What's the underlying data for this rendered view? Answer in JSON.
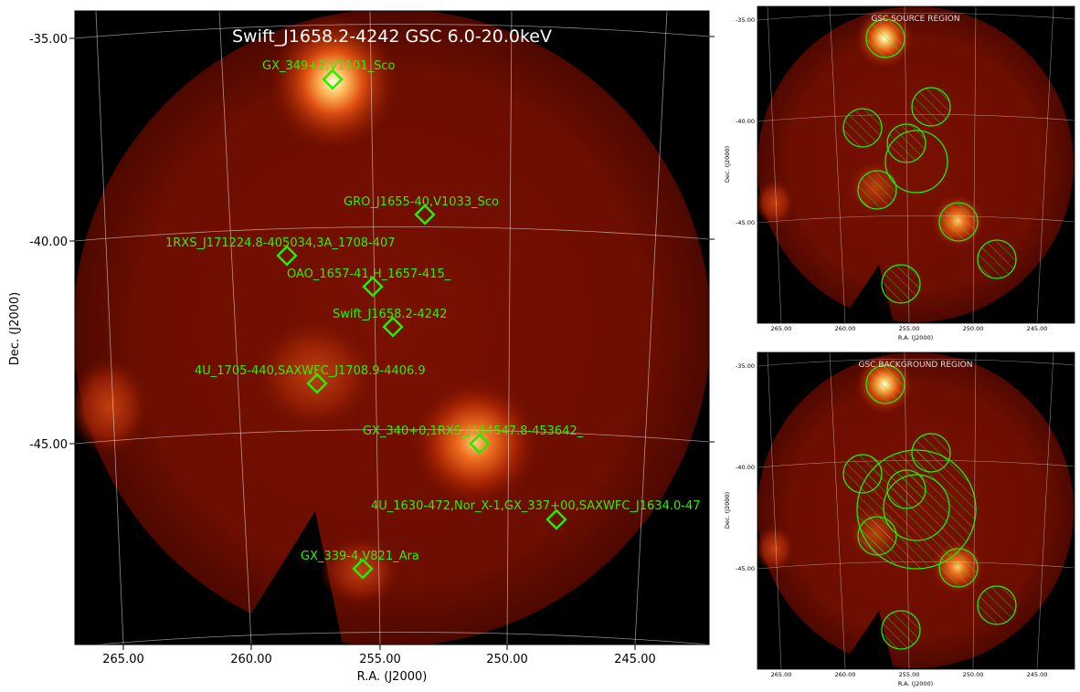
{
  "main_panel": {
    "title": "Swift_J1658.2-4242 GSC 6.0-20.0keV",
    "xlabel": "R.A. (J2000)",
    "ylabel": "Dec. (J2000)",
    "dec_ticks": [
      "-35.00",
      "-40.00",
      "-45.00"
    ],
    "ra_ticks": [
      "265.00",
      "260.00",
      "255.00",
      "250.00",
      "245.00"
    ],
    "sources": [
      {
        "label": "GX_349+2,V1101_Sco"
      },
      {
        "label": "GRO_J1655-40,V1033_Sco"
      },
      {
        "label": "1RXS_J171224.8-405034,3A_1708-407"
      },
      {
        "label": "OAO_1657-41,H_1657-415_"
      },
      {
        "label": "Swift_J1658.2-4242"
      },
      {
        "label": "4U_1705-440,SAXWFC_J1708.9-4406.9"
      },
      {
        "label": "GX_340+0,1RXS_J164547.8-453642_"
      },
      {
        "label": "4U_1630-472,Nor_X-1,GX_337+00,SAXWFC_J1634.0-47"
      },
      {
        "label": "GX_339-4,V821_Ara"
      }
    ],
    "marker_color": "#22ee00"
  },
  "source_panel": {
    "title": "GSC SOURCE REGION",
    "xlabel": "R.A. (J2000)",
    "ylabel": "Dec. (J2000)",
    "dec_ticks": [
      "-35.00",
      "-40.00",
      "-45.00"
    ],
    "ra_ticks": [
      "265.00",
      "260.00",
      "255.00",
      "250.00",
      "245.00"
    ]
  },
  "background_panel": {
    "title": "GSC BACKGROUND REGION",
    "xlabel": "R.A. (J2000)",
    "ylabel": "Dec. (J2000)",
    "dec_ticks": [
      "-35.00",
      "-40.00",
      "-45.00"
    ],
    "ra_ticks": [
      "265.00",
      "260.00",
      "255.00",
      "250.00",
      "245.00"
    ]
  }
}
